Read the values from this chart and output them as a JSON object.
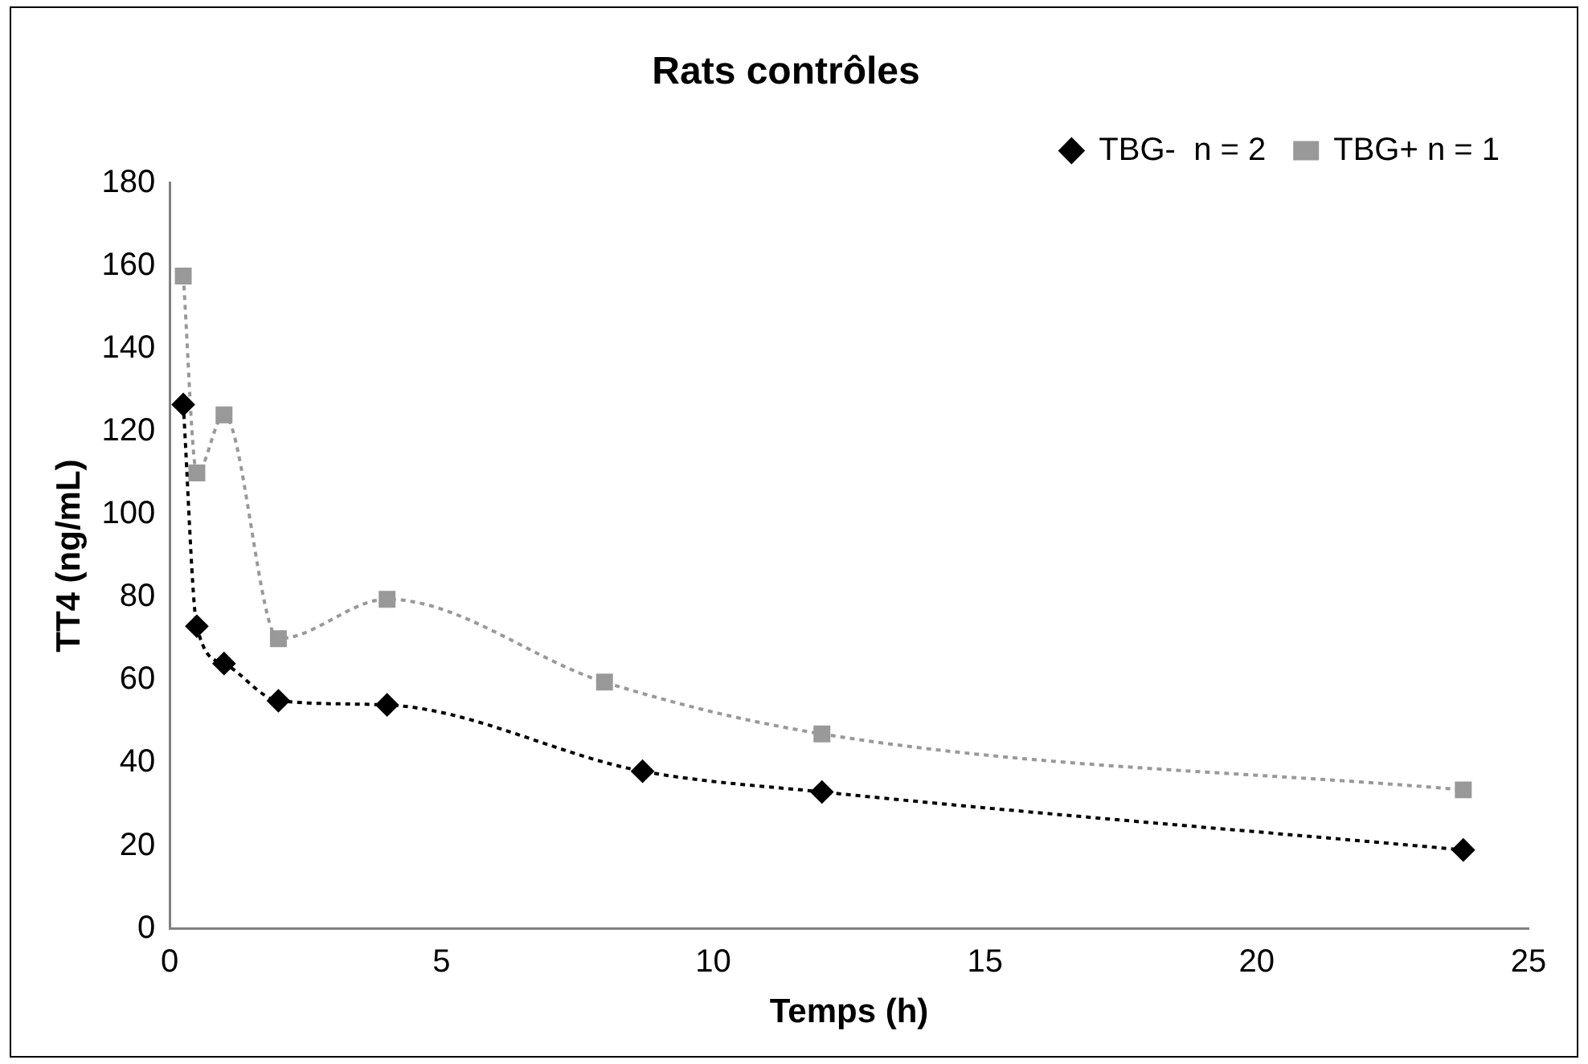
{
  "chart_data": {
    "type": "line",
    "title": "Rats contrôles",
    "xlabel": "Temps (h)",
    "ylabel": "TT4 (ng/mL)",
    "xlim": [
      0,
      25
    ],
    "xticks": [
      0,
      5,
      10,
      15,
      20,
      25
    ],
    "ylim": [
      0,
      180
    ],
    "yticks": [
      0,
      20,
      40,
      60,
      80,
      100,
      120,
      140,
      160,
      180
    ],
    "grid": false,
    "legend": "top right",
    "line_style": "dotted",
    "series": [
      {
        "name": "TBG-  n = 2",
        "color": "#000000",
        "marker": "diamond",
        "x": [
          0.25,
          0.5,
          1,
          2,
          4,
          8.7,
          12,
          23.8
        ],
        "values": [
          126.5,
          73,
          64,
          55,
          54,
          38,
          33,
          19
        ]
      },
      {
        "name": "TBG+ n = 1",
        "color": "#999999",
        "marker": "square",
        "x": [
          0.25,
          0.5,
          1,
          2,
          4,
          8,
          12,
          23.8
        ],
        "values": [
          157.5,
          110,
          124,
          70,
          79.5,
          59.5,
          47,
          33.5
        ]
      }
    ]
  }
}
